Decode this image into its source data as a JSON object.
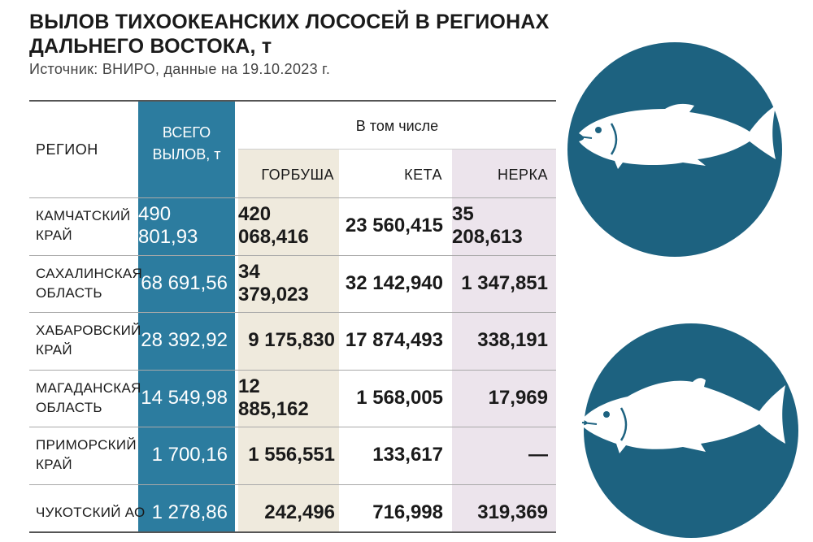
{
  "title": "ВЫЛОВ ТИХООКЕАНСКИХ ЛОСОСЕЙ В РЕГИОНАХ ДАЛЬНЕГО ВОСТОКА, т",
  "source": "Источник: ВНИРО, данные на 19.10.2023 г.",
  "colors": {
    "total_col": "#2c7c9f",
    "gorbusha_col": "#efeadd",
    "nerka_col": "#ece4ec",
    "circle": "#1d6280"
  },
  "icons": [
    "salmon-icon",
    "humpback-salmon-icon"
  ],
  "chart_data": {
    "type": "table",
    "title": "ВЫЛОВ ТИХООКЕАНСКИХ ЛОСОСЕЙ В РЕГИОНАХ ДАЛЬНЕГО ВОСТОКА, т",
    "headers": {
      "region": "РЕГИОН",
      "total_line1": "ВСЕГО",
      "total_line2": "ВЫЛОВ, т",
      "group": "В том числе",
      "gorbusha": "ГОРБУША",
      "keta": "КЕТА",
      "nerka": "НЕРКА"
    },
    "rows": [
      {
        "region_line1": "КАМЧАТСКИЙ",
        "region_line2": "КРАЙ",
        "total": "490 801,93",
        "gorbusha": "420 068,416",
        "keta": "23 560,415",
        "nerka": "35 208,613"
      },
      {
        "region_line1": "САХАЛИНСКАЯ",
        "region_line2": "ОБЛАСТЬ",
        "total": "68 691,56",
        "gorbusha": "34 379,023",
        "keta": "32 142,940",
        "nerka": "1 347,851"
      },
      {
        "region_line1": "ХАБАРОВСКИЙ",
        "region_line2": "КРАЙ",
        "total": "28 392,92",
        "gorbusha": "9 175,830",
        "keta": "17 874,493",
        "nerka": "338,191"
      },
      {
        "region_line1": "МАГАДАНСКАЯ",
        "region_line2": "ОБЛАСТЬ",
        "total": "14 549,98",
        "gorbusha": "12 885,162",
        "keta": "1 568,005",
        "nerka": "17,969"
      },
      {
        "region_line1": "ПРИМОРСКИЙ",
        "region_line2": "КРАЙ",
        "total": "1 700,16",
        "gorbusha": "1 556,551",
        "keta": "133,617",
        "nerka": "—"
      },
      {
        "region_line1": "ЧУКОТСКИЙ АО",
        "region_line2": "",
        "total": "1 278,86",
        "gorbusha": "242,496",
        "keta": "716,998",
        "nerka": "319,369"
      }
    ]
  }
}
